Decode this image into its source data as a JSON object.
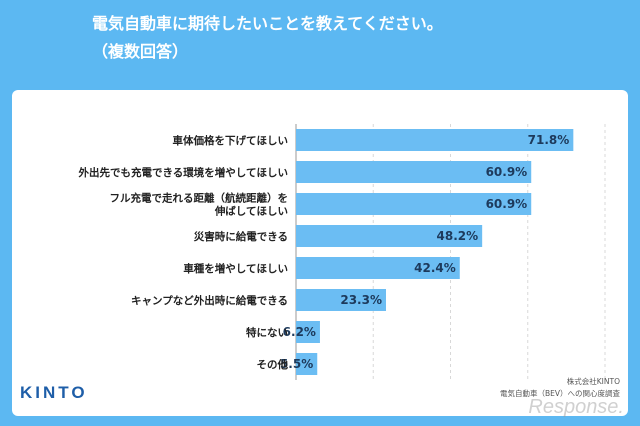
{
  "header": {
    "title_line1": "電気自動車に期待したいことを教えてください。",
    "title_line2": "（複数回答）"
  },
  "logo": {
    "text": "KINTO"
  },
  "source": {
    "line1": "株式会社KINTO",
    "line2": "電気自動車（BEV）への関心度調査"
  },
  "watermark": {
    "text": "Response."
  },
  "colors": {
    "background": "#5cb8f2",
    "bar": "#6bbdf3",
    "panel": "#ffffff"
  },
  "chart_data": {
    "type": "bar",
    "orientation": "horizontal",
    "title": "電気自動車に期待したいことを教えてください。（複数回答）",
    "categories": [
      [
        "車体価格を下げてほしい"
      ],
      [
        "外出先でも充電できる環境を増やしてほしい"
      ],
      [
        "フル充電で走れる距離（航続距離）を",
        "伸ばしてほしい"
      ],
      [
        "災害時に給電できる"
      ],
      [
        "車種を増やしてほしい"
      ],
      [
        "キャンプなど外出時に給電できる"
      ],
      [
        "特にない"
      ],
      [
        "その他"
      ]
    ],
    "values": [
      71.8,
      60.9,
      60.9,
      48.2,
      42.4,
      23.3,
      6.2,
      5.5
    ],
    "value_labels": [
      "71.8%",
      "60.9%",
      "60.9%",
      "48.2%",
      "42.4%",
      "23.3%",
      "6.2%",
      "5.5%"
    ],
    "xlim": [
      0,
      80
    ],
    "grid": true
  }
}
